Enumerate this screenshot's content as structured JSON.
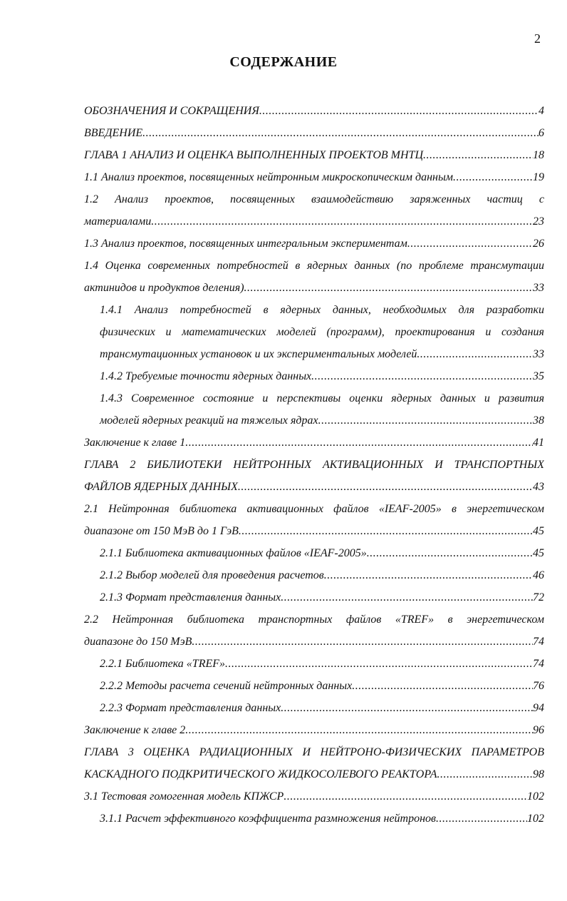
{
  "page_number": "2",
  "title": "СОДЕРЖАНИЕ",
  "entries": [
    {
      "lines": [],
      "last": "ОБОЗНАЧЕНИЯ И СОКРАЩЕНИЯ",
      "page": "4",
      "indent": false
    },
    {
      "lines": [],
      "last": "ВВЕДЕНИЕ",
      "page": "6",
      "indent": false
    },
    {
      "lines": [],
      "last": "ГЛАВА 1 АНАЛИЗ И ОЦЕНКА ВЫПОЛНЕННЫХ ПРОЕКТОВ МНТЦ",
      "page": "18",
      "indent": false
    },
    {
      "lines": [],
      "last": "1.1 Анализ проектов, посвященных нейтронным микроскопическим данным",
      "page": "19",
      "indent": false
    },
    {
      "lines": [
        "1.2 Анализ проектов, посвященных взаимодействию заряженных частиц с"
      ],
      "last": "материалами",
      "page": "23",
      "indent": false
    },
    {
      "lines": [],
      "last": "1.3 Анализ проектов, посвященных интегральным экспериментам",
      "page": "26",
      "indent": false
    },
    {
      "lines": [
        "1.4 Оценка современных потребностей в ядерных данных (по проблеме трансмутации"
      ],
      "last": "актинидов и продуктов деления)",
      "page": "33",
      "indent": false
    },
    {
      "lines": [
        "1.4.1 Анализ потребностей в ядерных данных, необходимых для разработки",
        "физических и математических моделей (программ), проектирования и создания"
      ],
      "last": "трансмутационных установок и их экспериментальных моделей",
      "page": "33",
      "indent": true
    },
    {
      "lines": [],
      "last": "1.4.2 Требуемые точности ядерных данных",
      "page": "35",
      "indent": true
    },
    {
      "lines": [
        "1.4.3 Современное состояние и перспективы оценки ядерных данных и развития"
      ],
      "last": "моделей ядерных реакций на тяжелых ядрах",
      "page": "38",
      "indent": true
    },
    {
      "lines": [],
      "last": "Заключение к главе 1",
      "page": "41",
      "indent": false
    },
    {
      "lines": [
        "ГЛАВА 2 БИБЛИОТЕКИ НЕЙТРОННЫХ АКТИВАЦИОННЫХ И ТРАНСПОРТНЫХ"
      ],
      "last": "ФАЙЛОВ ЯДЕРНЫХ ДАННЫХ",
      "page": "43",
      "indent": false
    },
    {
      "lines": [
        "2.1 Нейтронная библиотека активационных файлов «IEAF-2005» в энергетическом"
      ],
      "last": "диапазоне от 150 МэВ до 1 ГэВ",
      "page": "45",
      "indent": false
    },
    {
      "lines": [],
      "last": "2.1.1 Библиотека активационных файлов «IEAF-2005»",
      "page": "45",
      "indent": true
    },
    {
      "lines": [],
      "last": "2.1.2 Выбор моделей для проведения расчетов",
      "page": "46",
      "indent": true
    },
    {
      "lines": [],
      "last": "2.1.3 Формат представления данных",
      "page": "72",
      "indent": true
    },
    {
      "lines": [
        "2.2 Нейтронная библиотека транспортных файлов «TREF» в энергетическом"
      ],
      "last": "диапазоне до 150 МэВ",
      "page": "74",
      "indent": false
    },
    {
      "lines": [],
      "last": "2.2.1 Библиотека «TREF»",
      "page": "74",
      "indent": true
    },
    {
      "lines": [],
      "last": "2.2.2 Методы расчета сечений нейтронных данных",
      "page": "76",
      "indent": true
    },
    {
      "lines": [],
      "last": "2.2.3 Формат представления данных",
      "page": "94",
      "indent": true
    },
    {
      "lines": [],
      "last": "Заключение к главе 2",
      "page": "96",
      "indent": false
    },
    {
      "lines": [
        "ГЛАВА 3 ОЦЕНКА РАДИАЦИОННЫХ И НЕЙТРОНО-ФИЗИЧЕСКИХ ПАРАМЕТРОВ"
      ],
      "last": "КАСКАДНОГО ПОДКРИТИЧЕСКОГО ЖИДКОСОЛЕВОГО РЕАКТОРА",
      "page": "98",
      "indent": false
    },
    {
      "lines": [],
      "last": "3.1 Тестовая гомогенная модель КПЖСР",
      "page": "102",
      "indent": false
    },
    {
      "lines": [],
      "last": "3.1.1 Расчет эффективного коэффициента размножения нейтронов",
      "page": "102",
      "indent": true
    }
  ]
}
